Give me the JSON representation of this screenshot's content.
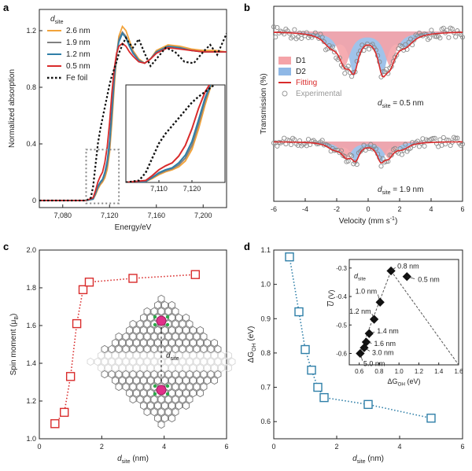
{
  "figure": {
    "panel_labels": [
      "a",
      "b",
      "c",
      "d"
    ]
  },
  "chart_data": [
    {
      "panel": "a",
      "type": "line",
      "xlabel": "Energy/eV",
      "ylabel": "Normalized absorption",
      "xlim": [
        7060,
        7220
      ],
      "ylim": [
        -0.05,
        1.35
      ],
      "xticks": [
        "7,080",
        "7,120",
        "7,160",
        "7,200"
      ],
      "yticks": [
        "0",
        "0.4",
        "0.8",
        "1.2"
      ],
      "legend_title": "d",
      "legend_title_sub": "site",
      "legend_position": "top-left",
      "series": [
        {
          "name": "2.6 nm",
          "color": "#f2a33a",
          "x": [
            7060,
            7100,
            7106,
            7108,
            7110,
            7112,
            7114,
            7116,
            7118,
            7120,
            7122,
            7124,
            7126,
            7128,
            7131,
            7134,
            7137,
            7140,
            7145,
            7150,
            7155,
            7160,
            7170,
            7180,
            7190,
            7200,
            7210,
            7220
          ],
          "y": [
            0,
            0,
            0.01,
            0.04,
            0.08,
            0.11,
            0.13,
            0.16,
            0.22,
            0.34,
            0.55,
            0.8,
            1.02,
            1.16,
            1.23,
            1.2,
            1.13,
            1.06,
            1.0,
            0.97,
            1.0,
            1.06,
            1.1,
            1.09,
            1.07,
            1.06,
            1.06,
            1.05
          ]
        },
        {
          "name": "1.9 nm",
          "color": "#808080",
          "x": [
            7060,
            7100,
            7106,
            7108,
            7110,
            7112,
            7114,
            7116,
            7118,
            7120,
            7122,
            7124,
            7126,
            7128,
            7131,
            7134,
            7137,
            7140,
            7145,
            7150,
            7155,
            7160,
            7170,
            7180,
            7190,
            7200,
            7210,
            7220
          ],
          "y": [
            0,
            0,
            0.01,
            0.05,
            0.09,
            0.12,
            0.14,
            0.18,
            0.25,
            0.38,
            0.6,
            0.84,
            1.03,
            1.14,
            1.19,
            1.16,
            1.1,
            1.05,
            0.99,
            0.97,
            1.0,
            1.05,
            1.09,
            1.08,
            1.06,
            1.05,
            1.05,
            1.05
          ]
        },
        {
          "name": "1.2 nm",
          "color": "#2f7fa8",
          "x": [
            7060,
            7100,
            7106,
            7108,
            7110,
            7112,
            7114,
            7116,
            7118,
            7120,
            7122,
            7124,
            7126,
            7128,
            7131,
            7134,
            7137,
            7140,
            7145,
            7150,
            7155,
            7160,
            7170,
            7180,
            7190,
            7200,
            7210,
            7220
          ],
          "y": [
            0,
            0,
            0.01,
            0.05,
            0.1,
            0.13,
            0.15,
            0.2,
            0.28,
            0.42,
            0.64,
            0.87,
            1.03,
            1.12,
            1.18,
            1.15,
            1.09,
            1.04,
            0.99,
            0.97,
            1.0,
            1.05,
            1.09,
            1.08,
            1.06,
            1.05,
            1.05,
            1.05
          ]
        },
        {
          "name": "0.5 nm",
          "color": "#d92b2b",
          "x": [
            7060,
            7100,
            7106,
            7108,
            7110,
            7112,
            7114,
            7116,
            7118,
            7120,
            7122,
            7124,
            7126,
            7128,
            7131,
            7134,
            7137,
            7140,
            7145,
            7150,
            7155,
            7160,
            7170,
            7180,
            7190,
            7200,
            7210,
            7220
          ],
          "y": [
            0,
            0,
            0.02,
            0.07,
            0.13,
            0.17,
            0.2,
            0.27,
            0.38,
            0.55,
            0.76,
            0.93,
            1.04,
            1.09,
            1.11,
            1.09,
            1.05,
            1.02,
            0.98,
            0.97,
            1.0,
            1.04,
            1.08,
            1.07,
            1.06,
            1.05,
            1.05,
            1.05
          ]
        },
        {
          "name": "Fe foil",
          "color": "#111111",
          "dashed": true,
          "x": [
            7060,
            7100,
            7104,
            7106,
            7108,
            7110,
            7112,
            7114,
            7116,
            7118,
            7120,
            7122,
            7124,
            7126,
            7128,
            7131,
            7134,
            7137,
            7140,
            7145,
            7150,
            7155,
            7160,
            7168,
            7176,
            7184,
            7192,
            7200,
            7206,
            7212,
            7220
          ],
          "y": [
            0,
            0,
            0.02,
            0.1,
            0.25,
            0.4,
            0.5,
            0.58,
            0.66,
            0.74,
            0.82,
            0.88,
            0.93,
            0.98,
            1.04,
            1.1,
            1.15,
            1.11,
            1.08,
            1.14,
            1.04,
            0.95,
            1.0,
            1.08,
            1.05,
            0.98,
            0.97,
            1.05,
            1.1,
            1.03,
            1.18
          ]
        }
      ],
      "inset": {
        "xlim": [
          7100,
          7130
        ],
        "ylim": [
          0,
          1.0
        ],
        "xticks": [
          "7,110",
          "7,120"
        ],
        "zoom_box": "dotted-rectangle"
      }
    },
    {
      "panel": "b",
      "type": "scatter",
      "xlabel": "Velocity (mm s",
      "xlabel_sup": "-1",
      "xlabel_suffix": ")",
      "ylabel": "Transmission (%)",
      "xlim": [
        -6,
        6
      ],
      "xticks": [
        "-6",
        "-4",
        "-2",
        "0",
        "2",
        "4",
        "6"
      ],
      "legend": [
        "D1",
        "D2",
        "Fitting",
        "Experimental"
      ],
      "legend_colors": {
        "D1": "#f5a3a8",
        "D2": "#8fb8e6",
        "Fitting": "#d92b2b",
        "Experimental": "#999999"
      },
      "legend_position": "middle-left",
      "annotations": [
        {
          "text": "d",
          "sub": "site",
          "suffix": " = 0.5 nm"
        },
        {
          "text": "d",
          "sub": "site",
          "suffix": " = 1.9 nm"
        }
      ],
      "spectra": [
        {
          "label": "0.5 nm",
          "d1": [
            {
              "center": -1.5,
              "depth": 0.55,
              "width": 0.9
            },
            {
              "center": 1.4,
              "depth": 0.55,
              "width": 0.9
            }
          ],
          "d2": [
            {
              "center": -0.9,
              "depth": 0.75,
              "width": 0.7
            },
            {
              "center": 0.9,
              "depth": 0.75,
              "width": 0.7
            },
            {
              "center": -2.4,
              "depth": 0.25,
              "width": 1.2
            },
            {
              "center": 2.4,
              "depth": 0.25,
              "width": 1.2
            }
          ]
        },
        {
          "label": "1.9 nm",
          "d1": [
            {
              "center": -1.4,
              "depth": 0.4,
              "width": 0.8
            },
            {
              "center": 1.3,
              "depth": 0.4,
              "width": 0.8
            }
          ],
          "d2": [
            {
              "center": -0.8,
              "depth": 0.55,
              "width": 0.6
            },
            {
              "center": 0.8,
              "depth": 0.55,
              "width": 0.6
            },
            {
              "center": -2.2,
              "depth": 0.2,
              "width": 1.0
            },
            {
              "center": 2.2,
              "depth": 0.2,
              "width": 1.0
            }
          ]
        }
      ]
    },
    {
      "panel": "c",
      "type": "scatter",
      "xlabel": "d",
      "xlabel_sub": "site",
      "xlabel_suffix": " (nm)",
      "ylabel": "Spin moment (μ",
      "ylabel_sub": "B",
      "ylabel_suffix": ")",
      "xlim": [
        0,
        6
      ],
      "ylim": [
        1.0,
        2.0
      ],
      "xticks": [
        "0",
        "2",
        "4",
        "6"
      ],
      "yticks": [
        "1.0",
        "1.2",
        "1.4",
        "1.6",
        "1.8",
        "2.0"
      ],
      "color": "#d92b2b",
      "x": [
        0.5,
        0.8,
        1.0,
        1.2,
        1.4,
        1.6,
        3.0,
        5.0
      ],
      "y": [
        1.08,
        1.14,
        1.33,
        1.61,
        1.79,
        1.83,
        1.85,
        1.87
      ],
      "inset_label": "d",
      "inset_label_sub": "site"
    },
    {
      "panel": "d",
      "type": "scatter",
      "xlabel": "d",
      "xlabel_sub": "site",
      "xlabel_suffix": " (nm)",
      "ylabel": "ΔG",
      "ylabel_sub": "OH",
      "ylabel_suffix": " (eV)",
      "xlim": [
        0,
        6
      ],
      "ylim": [
        0.55,
        1.1
      ],
      "xticks": [
        "0",
        "2",
        "4",
        "6"
      ],
      "yticks": [
        "0.6",
        "0.7",
        "0.8",
        "0.9",
        "1.0",
        "1.1"
      ],
      "color": "#2f7fa8",
      "x": [
        0.5,
        0.8,
        1.0,
        1.2,
        1.4,
        1.6,
        3.0,
        5.0
      ],
      "y": [
        1.08,
        0.92,
        0.81,
        0.75,
        0.7,
        0.67,
        0.65,
        0.61
      ],
      "inset": {
        "xlabel": "ΔG",
        "xlabel_sub": "OH",
        "xlabel_suffix": " (eV)",
        "ylabel": "U",
        "ylabel_suffix": " (V)",
        "xlim": [
          0.5,
          1.6
        ],
        "ylim": [
          -0.64,
          -0.27
        ],
        "xticks": [
          "0.6",
          "0.8",
          "1.0",
          "1.2",
          "1.4",
          "1.6"
        ],
        "yticks": [
          "-0.3",
          "-0.4",
          "-0.5",
          "-0.6"
        ],
        "legend_title": "d",
        "legend_title_sub": "site",
        "points": [
          {
            "label": "0.5 nm",
            "x": 1.08,
            "y": -0.33
          },
          {
            "label": "0.8 nm",
            "x": 0.92,
            "y": -0.31
          },
          {
            "label": "1.0 nm",
            "x": 0.81,
            "y": -0.42
          },
          {
            "label": "1.2 nm",
            "x": 0.75,
            "y": -0.48
          },
          {
            "label": "1.4 nm",
            "x": 0.7,
            "y": -0.53
          },
          {
            "label": "1.6 nm",
            "x": 0.67,
            "y": -0.56
          },
          {
            "label": "3.0 nm",
            "x": 0.65,
            "y": -0.58
          },
          {
            "label": "5.0 nm",
            "x": 0.61,
            "y": -0.6
          }
        ]
      }
    }
  ]
}
